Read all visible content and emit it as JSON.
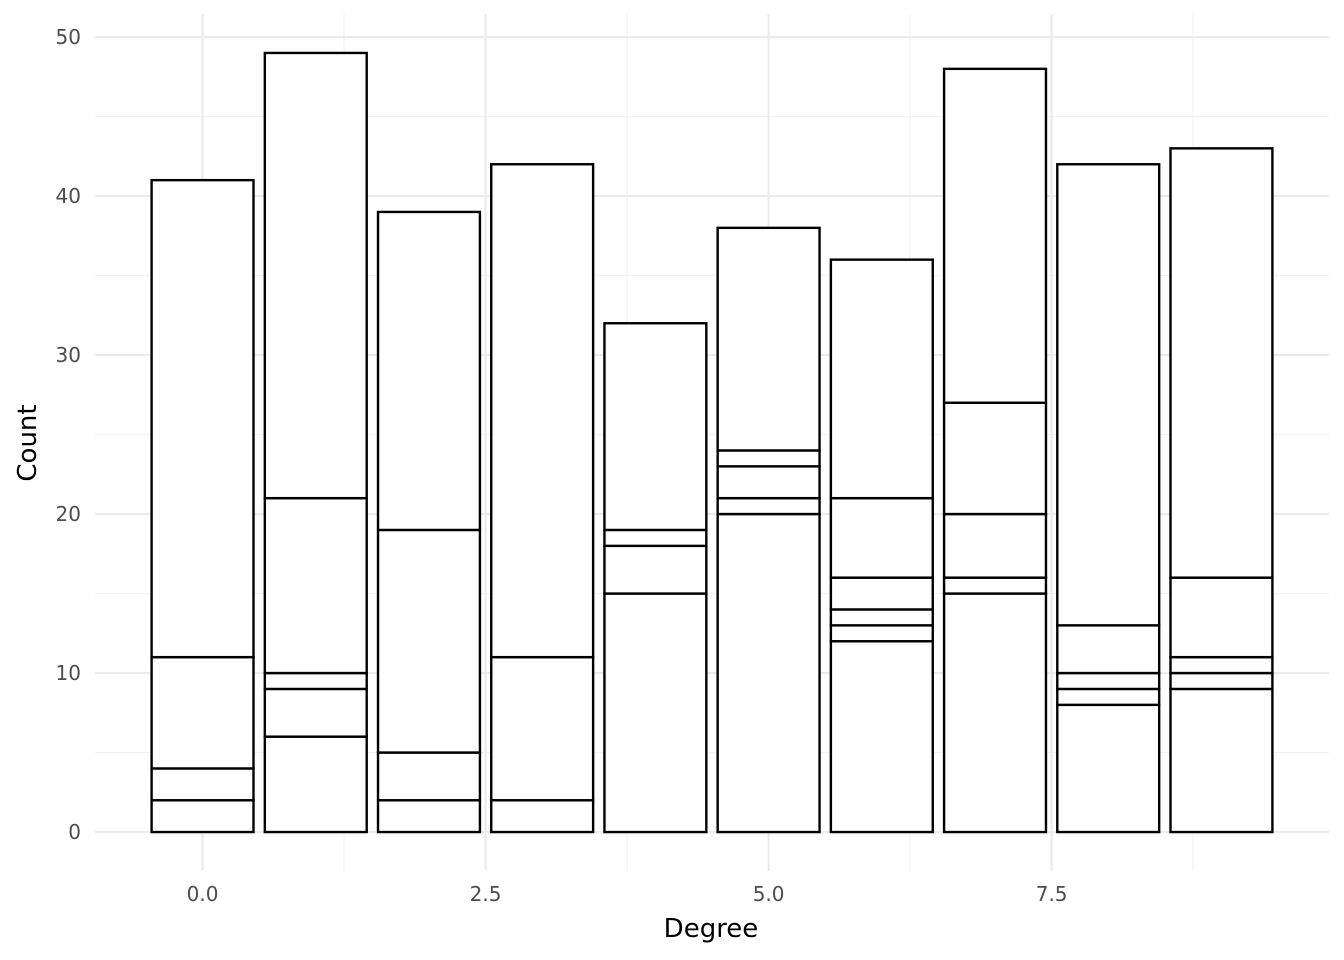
{
  "chart_data": {
    "type": "bar",
    "stacked": true,
    "xlabel": "Degree",
    "ylabel": "Count",
    "xlim": [
      -0.95,
      9.95
    ],
    "ylim": [
      -2.45,
      51.45
    ],
    "x_ticks": [
      0.0,
      2.5,
      5.0,
      7.5
    ],
    "x_tick_labels": [
      "0.0",
      "2.5",
      "5.0",
      "7.5"
    ],
    "y_ticks": [
      0,
      10,
      20,
      30,
      40,
      50
    ],
    "y_tick_labels": [
      "0",
      "10",
      "20",
      "30",
      "40",
      "50"
    ],
    "bar_width": 0.9,
    "grid": true,
    "legend": false,
    "colors": {
      "bar_fill": "#ffffff",
      "bar_stroke": "#000000",
      "grid_major": "#ebebeb",
      "grid_minor": "#f2f2f2"
    },
    "bars": [
      {
        "x": 0,
        "total": 41,
        "segments": [
          2,
          2,
          7,
          30
        ]
      },
      {
        "x": 1,
        "total": 49,
        "segments": [
          6,
          3,
          1,
          11,
          28
        ]
      },
      {
        "x": 2,
        "total": 39,
        "segments": [
          2,
          3,
          14,
          20
        ]
      },
      {
        "x": 3,
        "total": 42,
        "segments": [
          2,
          9,
          31
        ]
      },
      {
        "x": 4,
        "total": 32,
        "segments": [
          15,
          3,
          1,
          13
        ]
      },
      {
        "x": 5,
        "total": 38,
        "segments": [
          20,
          1,
          2,
          1,
          14
        ]
      },
      {
        "x": 6,
        "total": 36,
        "segments": [
          12,
          1,
          1,
          2,
          5,
          15
        ]
      },
      {
        "x": 7,
        "total": 48,
        "segments": [
          15,
          1,
          4,
          7,
          21
        ]
      },
      {
        "x": 8,
        "total": 42,
        "segments": [
          8,
          1,
          1,
          3,
          29
        ]
      },
      {
        "x": 9,
        "total": 43,
        "segments": [
          9,
          1,
          1,
          5,
          27
        ]
      }
    ]
  }
}
